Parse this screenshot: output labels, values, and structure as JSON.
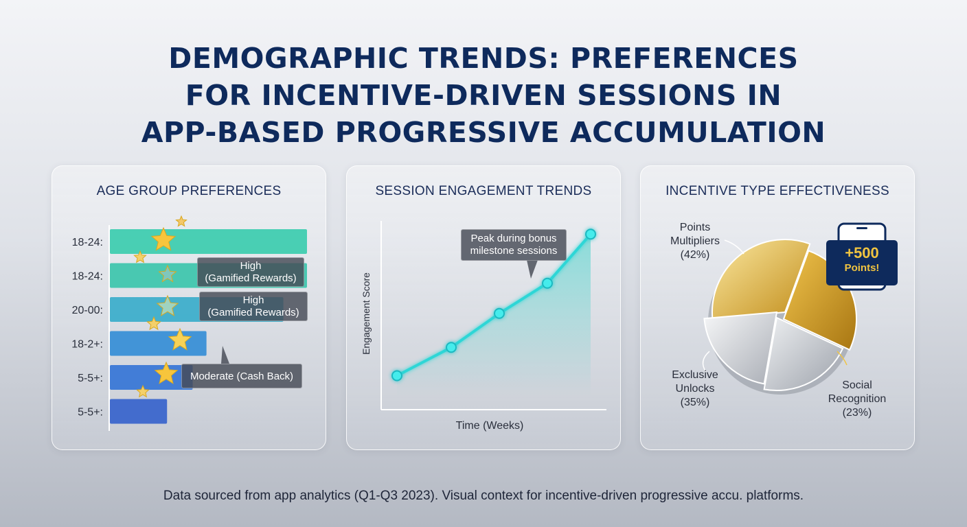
{
  "title": {
    "line1": "DEMOGRAPHIC TRENDS: PREFERENCES",
    "line2": "FOR INCENTIVE-DRIVEN SESSIONS IN",
    "line3": "APP-BASED PROGRESSIVE ACCUMULATION"
  },
  "footer": "Data sourced from app analytics (Q1-Q3 2023). Visual context for incentive-driven progressive accu. platforms.",
  "chart_data": [
    {
      "type": "bar",
      "title": "AGE GROUP PREFERENCES",
      "orientation": "horizontal",
      "categories": [
        "18-24:",
        "18-24:",
        "20-00:",
        "18-2+:",
        "5-5+:",
        "5-5+:"
      ],
      "values": [
        100,
        100,
        88,
        49,
        42,
        29
      ],
      "colors": [
        "#40cdb0",
        "#40c6ae",
        "#3eaecb",
        "#3a90d6",
        "#3a78d6",
        "#3b66cc"
      ],
      "annotations": [
        {
          "line1": "High",
          "line2": "(Gamified Rewards)",
          "bar": 1
        },
        {
          "line1": "High",
          "line2": "(Gamified Rewards)",
          "bar": 2
        },
        {
          "line1": "Moderate (Cash Back)",
          "line2": "",
          "bar": 4
        }
      ]
    },
    {
      "type": "line",
      "title": "SESSION ENGAGEMENT TRENDS",
      "xlabel": "Time (Weeks)",
      "ylabel": "Engagement Score",
      "x": [
        1,
        2,
        3,
        4,
        5
      ],
      "values": [
        18,
        33,
        51,
        67,
        93
      ],
      "ylim": [
        0,
        100
      ],
      "annotation": {
        "line1": "Peak during bonus",
        "line2": "milestone sessions"
      },
      "line_color": "#2fd6d6"
    },
    {
      "type": "pie",
      "title": "INCENTIVE TYPE EFFECTIVENESS",
      "slices": [
        {
          "label_line1": "Points",
          "label_line2": "Multipliers",
          "pct_label": "(42%)",
          "value": 42,
          "color": "#d6d8dc"
        },
        {
          "label_line1": "Exclusive",
          "label_line2": "Unlocks",
          "pct_label": "(35%)",
          "value": 35,
          "color": "#c9cbd0"
        },
        {
          "label_line1": "Social",
          "label_line2": "Recognition",
          "pct_label": "(23%)",
          "value": 23,
          "color": "#e2b43a"
        }
      ],
      "badge": {
        "line1": "+500",
        "line2": "Points!"
      }
    }
  ]
}
